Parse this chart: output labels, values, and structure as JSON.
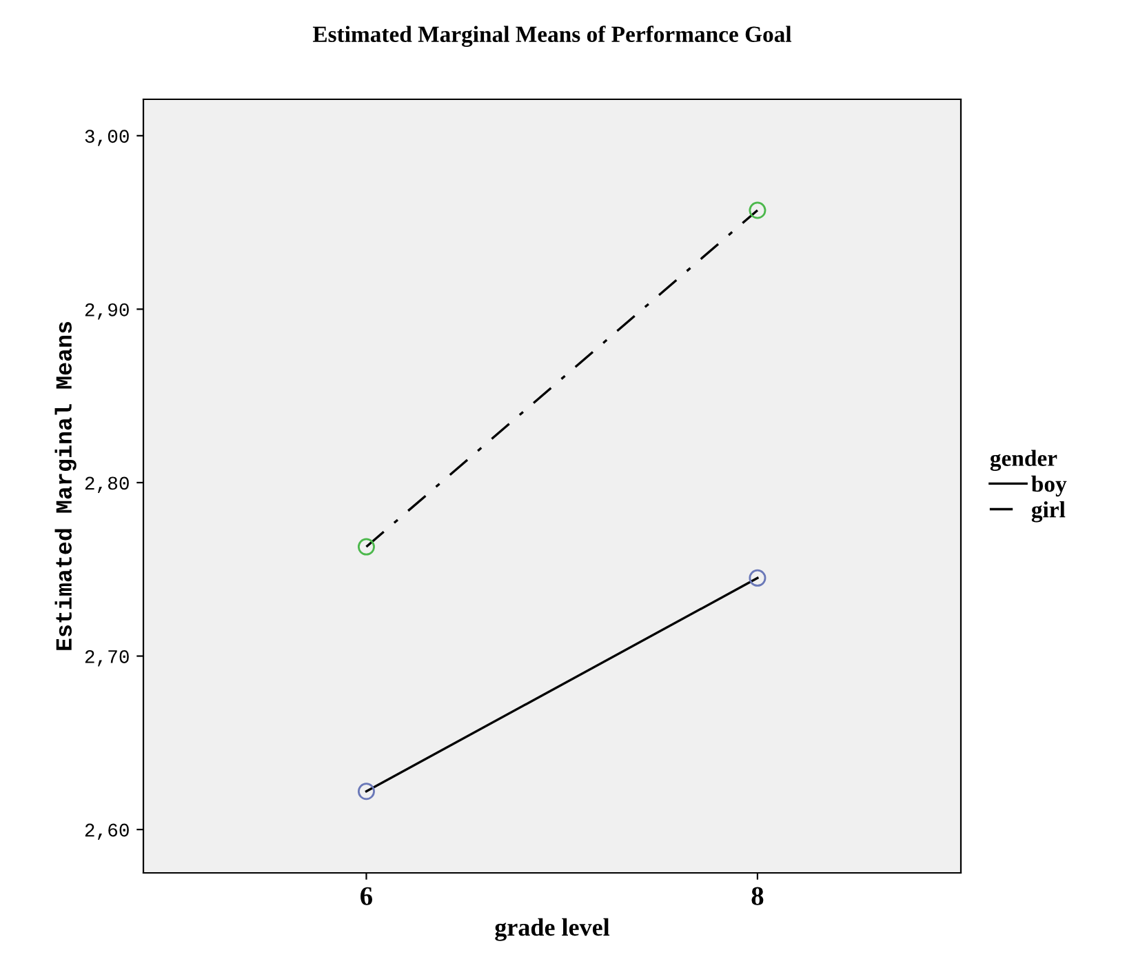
{
  "chart_data": {
    "type": "line",
    "title": "Estimated Marginal Means of Performance Goal",
    "xlabel": "grade level",
    "ylabel": "Estimated Marginal Means",
    "legend_title": "gender",
    "categories": [
      "6",
      "8"
    ],
    "series": [
      {
        "name": "boy",
        "color": "#000000",
        "colors": [
          "#6a78b8",
          "#6a78b8"
        ],
        "line_style": "solid",
        "values": [
          2.622,
          2.745
        ]
      },
      {
        "name": "girl",
        "color": "#000000",
        "colors": [
          "#4cb84c",
          "#4cb84c"
        ],
        "line_style": "dashdot",
        "values": [
          2.763,
          2.957
        ]
      }
    ],
    "ylim": [
      2.575,
      3.021
    ],
    "yticks": [
      {
        "value": 2.6,
        "label": "2,60"
      },
      {
        "value": 2.7,
        "label": "2,70"
      },
      {
        "value": 2.8,
        "label": "2,80"
      },
      {
        "value": 2.9,
        "label": "2,90"
      },
      {
        "value": 3.0,
        "label": "3,00"
      }
    ],
    "marker": "circle",
    "legend": "right",
    "grid": false
  }
}
